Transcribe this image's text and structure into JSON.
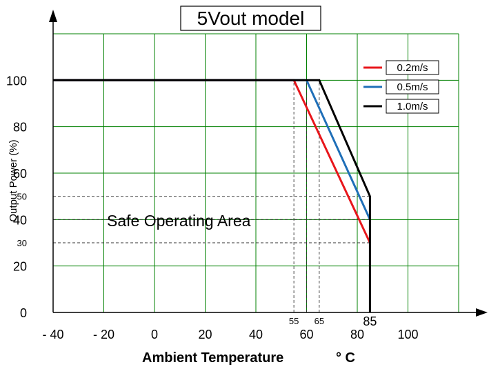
{
  "chart_data": {
    "type": "line",
    "title": "5Vout model",
    "xlabel": "Ambient Temperature",
    "xlabel_unit": "° C",
    "ylabel": "Output Power (%)",
    "xlim": [
      -40,
      120
    ],
    "ylim": [
      0,
      120
    ],
    "grid": true,
    "grid_color": "#008000",
    "legend_position": "top-right",
    "x_tick_labels": [
      {
        "value": -40,
        "label": "- 40"
      },
      {
        "value": -20,
        "label": "- 20"
      },
      {
        "value": 0,
        "label": "0"
      },
      {
        "value": 20,
        "label": "20"
      },
      {
        "value": 40,
        "label": "40"
      },
      {
        "value": 60,
        "label": "60"
      },
      {
        "value": 80,
        "label": "80"
      },
      {
        "value": 100,
        "label": "100"
      }
    ],
    "x_ref_labels": [
      {
        "value": 55,
        "label": "55"
      },
      {
        "value": 65,
        "label": "65"
      },
      {
        "value": 85,
        "label": "85"
      }
    ],
    "y_tick_labels": [
      {
        "value": 0,
        "label": "0"
      },
      {
        "value": 20,
        "label": "20"
      },
      {
        "value": 40,
        "label": "40"
      },
      {
        "value": 60,
        "label": "60"
      },
      {
        "value": 80,
        "label": "80"
      },
      {
        "value": 100,
        "label": "100"
      }
    ],
    "y_ref_labels": [
      {
        "value": 30,
        "label": "30"
      },
      {
        "value": 50,
        "label": "50"
      }
    ],
    "reference_lines": [
      {
        "orientation": "vertical",
        "x": 55,
        "y_from": 0,
        "y_to": 100
      },
      {
        "orientation": "vertical",
        "x": 60,
        "y_from": 0,
        "y_to": 100
      },
      {
        "orientation": "vertical",
        "x": 65,
        "y_from": 0,
        "y_to": 100
      },
      {
        "orientation": "horizontal",
        "y": 50,
        "x_from": -40,
        "x_to": 85
      },
      {
        "orientation": "horizontal",
        "y": 40,
        "x_from": -40,
        "x_to": 85
      },
      {
        "orientation": "horizontal",
        "y": 30,
        "x_from": -40,
        "x_to": 85
      }
    ],
    "series": [
      {
        "name": "0.2m/s",
        "color": "#e8161b",
        "points": [
          [
            -40,
            100
          ],
          [
            55,
            100
          ],
          [
            85,
            30
          ]
        ]
      },
      {
        "name": "0.5m/s",
        "color": "#1f6fb8",
        "points": [
          [
            -40,
            100
          ],
          [
            60,
            100
          ],
          [
            85,
            40
          ]
        ]
      },
      {
        "name": "1.0m/s",
        "color": "#000000",
        "points": [
          [
            -40,
            100
          ],
          [
            65,
            100
          ],
          [
            85,
            50
          ],
          [
            85,
            0
          ]
        ]
      }
    ],
    "annotations": [
      {
        "text": "Safe Operating Area",
        "x": 6,
        "y": 40
      }
    ]
  }
}
